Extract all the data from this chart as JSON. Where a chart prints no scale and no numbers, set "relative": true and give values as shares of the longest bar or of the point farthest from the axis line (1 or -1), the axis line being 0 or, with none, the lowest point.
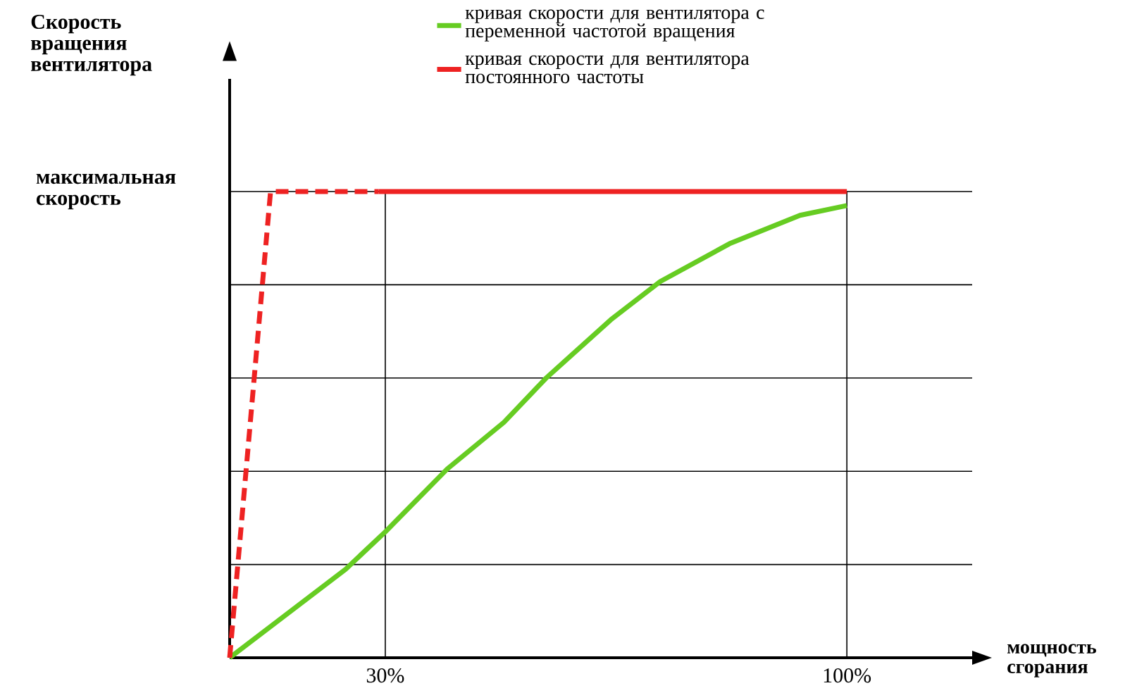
{
  "chart_data": {
    "type": "line",
    "relative": true,
    "xlabel": "мощность сгорания",
    "xlim": [
      6.4,
      119
    ],
    "xticks": [
      {
        "value": 30,
        "label": "30%"
      },
      {
        "value": 100,
        "label": "100%"
      }
    ],
    "grid": true,
    "legend": "top",
    "marker": "none",
    "annotations": [
      "Скорость вращения вентилятора",
      "максимальная скорость"
    ],
    "series": [
      {
        "name": "кривая скорости для вентилятора с переменной частотой вращения",
        "color": "#66cc22",
        "line_style": "solid",
        "x": [
          6.4,
          24,
          30,
          39.4,
          48,
          54.4,
          64.2,
          71.7,
          82.2,
          92.9,
          100
        ],
        "values": [
          0,
          0.19,
          0.27,
          0.405,
          0.505,
          0.6,
          0.725,
          0.807,
          0.888,
          0.949,
          0.97
        ]
      },
      {
        "name": "кривая скорости для вентилятора постоянного частоты",
        "color": "#ee2222",
        "line_style": "solid",
        "x": [
          29,
          100
        ],
        "values": [
          1,
          1
        ]
      },
      {
        "color": "#ee2222",
        "line_style": "dashed",
        "x": [
          6.4,
          12.6,
          29
        ],
        "values": [
          0,
          1,
          1
        ]
      }
    ]
  }
}
